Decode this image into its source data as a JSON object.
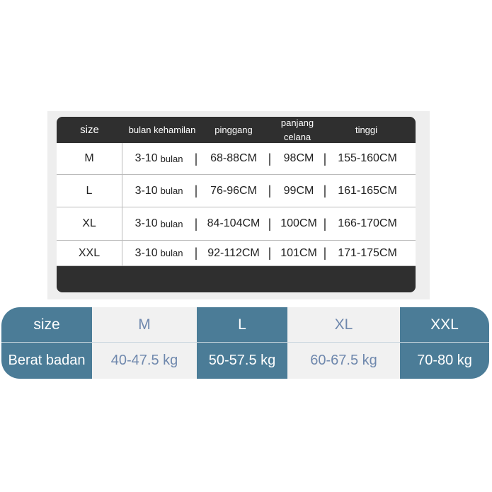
{
  "table1": {
    "headers": {
      "size": "size",
      "bulan": "bulan kehamilan",
      "pinggang": "pinggang",
      "panjang": "panjang celana",
      "tinggi": "tinggi"
    },
    "rows": [
      {
        "size": "M",
        "bulan": "3-10",
        "bulan_unit": "bulan",
        "pinggang": "68-88CM",
        "panjang": "98CM",
        "tinggi": "155-160CM"
      },
      {
        "size": "L",
        "bulan": "3-10",
        "bulan_unit": "bulan",
        "pinggang": "76-96CM",
        "panjang": "99CM",
        "tinggi": "161-165CM"
      },
      {
        "size": "XL",
        "bulan": "3-10",
        "bulan_unit": "bulan",
        "pinggang": "84-104CM",
        "panjang": "100CM",
        "tinggi": "166-170CM"
      },
      {
        "size": "XXL",
        "bulan": "3-10",
        "bulan_unit": "bulan",
        "pinggang": "92-112CM",
        "panjang": "101CM",
        "tinggi": "171-175CM"
      }
    ],
    "separator": "|"
  },
  "table2": {
    "size_label": "size",
    "weight_label": "Berat badan",
    "columns": [
      {
        "size": "M",
        "weight": "40-47.5 kg"
      },
      {
        "size": "L",
        "weight": "50-57.5 kg"
      },
      {
        "size": "XL",
        "weight": "60-67.5 kg"
      },
      {
        "size": "XXL",
        "weight": "70-80 kg"
      }
    ],
    "colors": {
      "dark": "#4b7c97",
      "light": "#f1f1f1",
      "light_text": "#6f88ad"
    }
  }
}
